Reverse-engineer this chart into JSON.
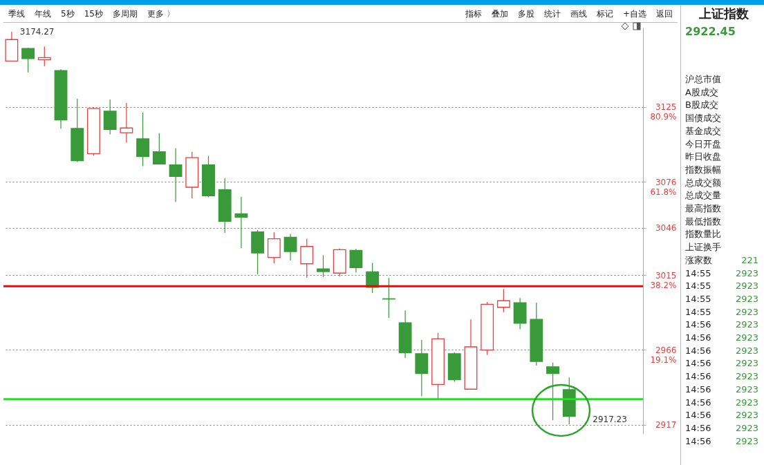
{
  "chart_data": [
    {
      "type": "candlestick",
      "categories": [
        null,
        null,
        null,
        null,
        null,
        null,
        null,
        null,
        null,
        null,
        null,
        null,
        null,
        null,
        null,
        null,
        null,
        null,
        null,
        null,
        null,
        null,
        null,
        null,
        null,
        null,
        null,
        null,
        null,
        null,
        null,
        null,
        null,
        null,
        null,
        null,
        null,
        null,
        null
      ],
      "ohlc": [
        [
          3155.1,
          3174.27,
          3155.1,
          3169.2
        ],
        [
          3163.4,
          3163.8,
          3147.7,
          3156.7
        ],
        [
          3156.0,
          3164.7,
          3151.8,
          3157.4
        ],
        [
          3148.9,
          3149.7,
          3110.7,
          3116.6
        ],
        [
          3111.0,
          3130.4,
          3089.0,
          3089.9
        ],
        [
          3094.5,
          3124.9,
          3093.1,
          3124.0
        ],
        [
          3122.3,
          3130.0,
          3107.1,
          3110.3
        ],
        [
          3108.2,
          3127.7,
          3101.7,
          3111.3
        ],
        [
          3104.2,
          3121.4,
          3086.3,
          3092.6
        ],
        [
          3095.7,
          3107.9,
          3087.7,
          3087.7
        ],
        [
          3087.1,
          3097.9,
          3062.9,
          3079.6
        ],
        [
          3072.5,
          3095.7,
          3065.1,
          3091.9
        ],
        [
          3087.1,
          3093.0,
          3066.0,
          3066.9
        ],
        [
          3070.8,
          3078.5,
          3042.6,
          3050.2
        ],
        [
          3055.1,
          3066.3,
          3032.6,
          3052.9
        ],
        [
          3043.3,
          3044.6,
          3015.5,
          3029.5
        ],
        [
          3026.5,
          3043.0,
          3022.7,
          3038.7
        ],
        [
          3039.7,
          3042.0,
          3024.5,
          3030.4
        ],
        [
          3022.4,
          3038.8,
          3013.2,
          3033.7
        ],
        [
          3019.0,
          3028.0,
          3013.7,
          3017.3
        ],
        [
          3016.3,
          3032.5,
          3014.0,
          3031.6
        ],
        [
          3031.2,
          3032.1,
          3016.6,
          3019.9
        ],
        [
          3017.1,
          3023.0,
          3003.3,
          3007.0
        ],
        [
          2999.5,
          3013.1,
          2986.9,
          2999.3
        ],
        [
          2983.8,
          2991.9,
          2960.8,
          2964.1
        ],
        [
          2963.5,
          2972.5,
          2935.6,
          2950.5
        ],
        [
          2943.4,
          2977.0,
          2934.1,
          2973.3
        ],
        [
          2963.5,
          2964.5,
          2945.2,
          2946.5
        ],
        [
          2940.3,
          2986.0,
          2940.3,
          2968.0
        ],
        [
          2965.9,
          2997.4,
          2962.7,
          2995.9
        ],
        [
          2993.9,
          3005.9,
          2990.7,
          2998.2
        ],
        [
          2996.9,
          3000.0,
          2979.5,
          2983.5
        ],
        [
          2986.0,
          2996.9,
          2955.8,
          2958.4
        ],
        [
          2954.9,
          2957.7,
          2919.9,
          2950.5
        ],
        [
          2940.0,
          2948.0,
          2917.23,
          2922.45
        ],
        null,
        null,
        null,
        null
      ],
      "colors": [
        "#f03c3c",
        "#389a38",
        "#f03c3c",
        "#389a38",
        "#389a38",
        "#f03c3c",
        "#389a38",
        "#f03c3c",
        "#389a38",
        "#389a38",
        "#389a38",
        "#f03c3c",
        "#389a38",
        "#389a38",
        "#389a38",
        "#389a38",
        "#f03c3c",
        "#389a38",
        "#f03c3c",
        "#389a38",
        "#f03c3c",
        "#389a38",
        "#389a38",
        "#389a38",
        "#389a38",
        "#389a38",
        "#f03c3c",
        "#389a38",
        "#f03c3c",
        "#f03c3c",
        "#f03c3c",
        "#389a38",
        "#389a38",
        "#389a38",
        "#389a38",
        null,
        null,
        null,
        null
      ],
      "ylim": [
        2911,
        3177
      ],
      "yticks": [
        {
          "value": 3125,
          "label": "3125\n80.9%"
        },
        {
          "value": 3076,
          "label": "3076\n61.8%"
        },
        3046,
        {
          "value": 3015,
          "label": "3015\n38.2%"
        },
        {
          "value": 2966,
          "label": "2966\n19.1%"
        },
        2917
      ],
      "grid": "y",
      "ref_lines": [
        {
          "axis": "y",
          "value": 3007.7,
          "color": "#ff0000"
        },
        {
          "axis": "y",
          "value": 2933.7,
          "color": "#22e022"
        }
      ],
      "annotations": [
        "季线",
        "年线",
        "5秒",
        "15秒",
        "多周期",
        "更多 〉",
        "指标",
        "叠加",
        "多股",
        "统计",
        "画线",
        "标记",
        "+自选",
        "返回",
        "3174.27",
        "2917.23"
      ]
    },
    {
      "type": "other",
      "annotations": [
        "上证指数",
        "2922.45",
        "沪总市值",
        "A股成交",
        "B股成交",
        "国债成交",
        "基金成交",
        "今日开盘",
        "昨日收盘",
        "指数振幅",
        "总成交额",
        "总成交量",
        "最高指数",
        "最低指数",
        "指数量比",
        "上证换手",
        "涨家数 221",
        "14:55 2923",
        "14:55 2923",
        "14:55 2923",
        "14:55 2923",
        "14:56 2923",
        "14:56 2923",
        "14:56 2923",
        "14:56 2923",
        "14:56 2923",
        "14:56 2923",
        "14:56 2923",
        "14:56 2923",
        "14:56 2923",
        "14:56 2923"
      ]
    }
  ]
}
